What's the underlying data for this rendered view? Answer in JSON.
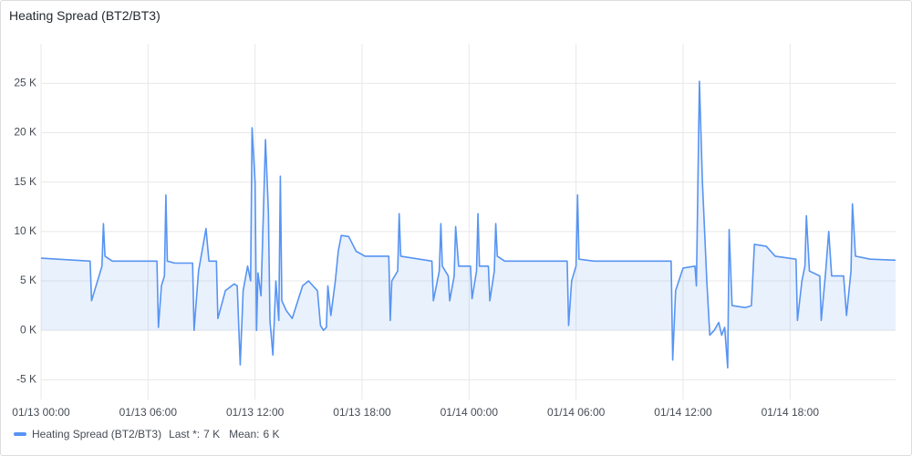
{
  "chart_data": {
    "type": "line",
    "title": "Heating Spread (BT2/BT3)",
    "x": [
      "01/13 00:00",
      "01/13 02:45",
      "01/13 02:50",
      "01/13 03:15",
      "01/13 03:25",
      "01/13 03:30",
      "01/13 03:35",
      "01/13 04:00",
      "01/13 06:30",
      "01/13 06:35",
      "01/13 06:45",
      "01/13 06:55",
      "01/13 07:00",
      "01/13 07:05",
      "01/13 07:30",
      "01/13 08:30",
      "01/13 08:35",
      "01/13 08:50",
      "01/13 09:15",
      "01/13 09:25",
      "01/13 09:50",
      "01/13 09:55",
      "01/13 10:20",
      "01/13 10:50",
      "01/13 11:00",
      "01/13 11:10",
      "01/13 11:20",
      "01/13 11:35",
      "01/13 11:45",
      "01/13 11:50",
      "01/13 12:00",
      "01/13 12:05",
      "01/13 12:10",
      "01/13 12:20",
      "01/13 12:35",
      "01/13 12:45",
      "01/13 12:50",
      "01/13 13:00",
      "01/13 13:10",
      "01/13 13:20",
      "01/13 13:25",
      "01/13 13:30",
      "01/13 13:45",
      "01/13 14:05",
      "01/13 14:40",
      "01/13 15:00",
      "01/13 15:30",
      "01/13 15:40",
      "01/13 15:50",
      "01/13 16:00",
      "01/13 16:05",
      "01/13 16:15",
      "01/13 16:30",
      "01/13 16:40",
      "01/13 16:50",
      "01/13 17:15",
      "01/13 17:40",
      "01/13 18:10",
      "01/13 19:30",
      "01/13 19:35",
      "01/13 19:40",
      "01/13 20:00",
      "01/13 20:05",
      "01/13 20:10",
      "01/13 21:55",
      "01/13 22:00",
      "01/13 22:20",
      "01/13 22:25",
      "01/13 22:30",
      "01/13 22:50",
      "01/13 22:55",
      "01/13 23:10",
      "01/13 23:15",
      "01/13 23:25",
      "01/14 00:05",
      "01/14 00:10",
      "01/14 00:25",
      "01/14 00:30",
      "01/14 00:35",
      "01/14 01:05",
      "01/14 01:10",
      "01/14 01:25",
      "01/14 01:30",
      "01/14 01:35",
      "01/14 02:00",
      "01/14 05:30",
      "01/14 05:35",
      "01/14 05:45",
      "01/14 06:00",
      "01/14 06:05",
      "01/14 06:10",
      "01/14 07:00",
      "01/14 11:20",
      "01/14 11:25",
      "01/14 11:35",
      "01/14 12:00",
      "01/14 12:40",
      "01/14 12:45",
      "01/14 12:55",
      "01/14 13:05",
      "01/14 13:20",
      "01/14 13:30",
      "01/14 13:45",
      "01/14 14:00",
      "01/14 14:10",
      "01/14 14:20",
      "01/14 14:30",
      "01/14 14:35",
      "01/14 14:45",
      "01/14 15:30",
      "01/14 15:50",
      "01/14 16:00",
      "01/14 16:40",
      "01/14 17:10",
      "01/14 18:20",
      "01/14 18:25",
      "01/14 18:40",
      "01/14 18:50",
      "01/14 18:55",
      "01/14 19:05",
      "01/14 19:40",
      "01/14 19:45",
      "01/14 20:00",
      "01/14 20:10",
      "01/14 20:20",
      "01/14 21:00",
      "01/14 21:10",
      "01/14 21:25",
      "01/14 21:30",
      "01/14 21:40",
      "01/14 22:30",
      "01/14 23:55"
    ],
    "series": [
      {
        "name": "Heating Spread (BT2/BT3)",
        "color": "#5794f2",
        "values": [
          7.3,
          7.0,
          3.0,
          5.5,
          6.5,
          10.8,
          7.5,
          7.0,
          7.0,
          0.3,
          4.5,
          5.5,
          13.7,
          7.0,
          6.8,
          6.8,
          0.0,
          6.0,
          10.3,
          7.0,
          7.0,
          1.2,
          4.0,
          4.7,
          4.5,
          -3.5,
          4.0,
          6.5,
          5.0,
          20.5,
          15.0,
          0.0,
          5.8,
          3.5,
          19.3,
          12.0,
          1.0,
          -2.5,
          5.0,
          1.0,
          15.6,
          3.0,
          2.0,
          1.2,
          4.5,
          5.0,
          4.0,
          0.5,
          0.0,
          0.3,
          4.5,
          1.5,
          5.0,
          8.0,
          9.6,
          9.5,
          8.0,
          7.5,
          7.5,
          1.0,
          5.0,
          6.0,
          11.8,
          7.5,
          7.0,
          3.0,
          6.0,
          10.8,
          6.5,
          5.5,
          3.0,
          5.5,
          10.5,
          6.5,
          6.5,
          3.2,
          6.0,
          11.8,
          6.5,
          6.5,
          3.0,
          6.0,
          10.8,
          7.5,
          7.0,
          7.0,
          0.5,
          5.0,
          6.5,
          13.7,
          7.2,
          7.0,
          7.0,
          -3.0,
          4.0,
          6.3,
          6.5,
          4.5,
          25.2,
          15.0,
          5.0,
          -0.5,
          0.0,
          0.8,
          -0.5,
          0.3,
          -3.8,
          10.2,
          2.5,
          2.3,
          2.5,
          8.7,
          8.5,
          7.5,
          7.2,
          1.0,
          5.0,
          6.5,
          11.6,
          6.0,
          5.5,
          1.0,
          6.0,
          10.0,
          5.5,
          5.5,
          1.5,
          6.0,
          12.8,
          7.5,
          7.2,
          7.1
        ]
      }
    ],
    "xlim": [
      "01/13 00:00",
      "01/14 23:55"
    ],
    "xticks": [
      "01/13 00:00",
      "01/13 06:00",
      "01/13 12:00",
      "01/13 18:00",
      "01/14 00:00",
      "01/14 06:00",
      "01/14 12:00",
      "01/14 18:00"
    ],
    "ylim": [
      -7,
      29
    ],
    "yticks": [
      {
        "value": -5,
        "label": "-5 K"
      },
      {
        "value": 0,
        "label": "0 K"
      },
      {
        "value": 5,
        "label": "5 K"
      },
      {
        "value": 10,
        "label": "10 K"
      },
      {
        "value": 15,
        "label": "15 K"
      },
      {
        "value": 20,
        "label": "20 K"
      },
      {
        "value": 25,
        "label": "25 K"
      }
    ],
    "grid": true,
    "legend_stats": [
      {
        "name": "Last *:",
        "value": 7,
        "label": "7 K"
      },
      {
        "name": "Mean:",
        "value": 6,
        "label": "6 K"
      }
    ]
  }
}
